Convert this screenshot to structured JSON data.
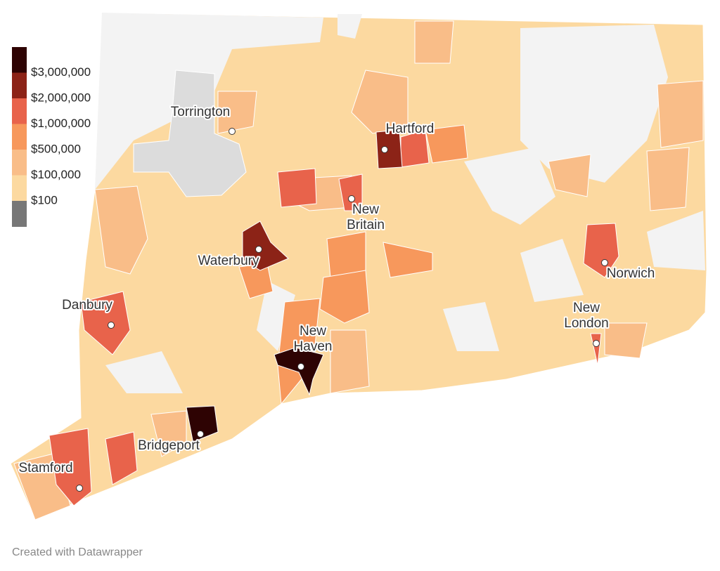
{
  "legend": {
    "labels": [
      "$3,000,000",
      "$2,000,000",
      "$1,000,000",
      "$500,000",
      "$100,000",
      "$100"
    ],
    "colors": [
      "#2e0303",
      "#8c2317",
      "#e8634b",
      "#f7985c",
      "#f9bd88",
      "#fcd9a0",
      "#777777"
    ]
  },
  "map": {
    "base_color": "#fcd9a0",
    "empty_color": "#f3f3f3",
    "no_data_color": "#dcdcdc"
  },
  "cities": [
    "Torrington",
    "Hartford",
    "New\nBritain",
    "Waterbury",
    "Danbury",
    "New\nHaven",
    "Bridgeport",
    "Stamford",
    "Norwich",
    "New\nLondon"
  ],
  "footer": "Created with Datawrapper"
}
